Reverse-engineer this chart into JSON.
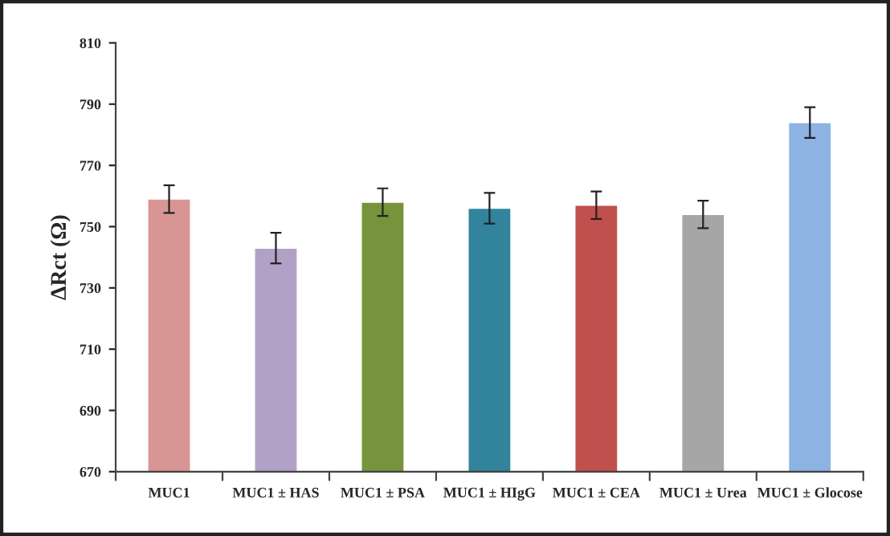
{
  "chart_data": {
    "type": "bar",
    "ylabel": "ΔRct (Ω)",
    "categories": [
      "MUC1",
      "MUC1 ± HAS",
      "MUC1 ± PSA",
      "MUC1 ± HIgG",
      "MUC1 ± CEA",
      "MUC1 ± Urea",
      "MUC1 ± Glocose"
    ],
    "values": [
      759,
      743,
      758,
      756,
      757,
      754,
      784
    ],
    "errors": [
      4.5,
      5,
      4.5,
      5,
      4.5,
      4.5,
      5
    ],
    "colors": [
      "#d99594",
      "#b2a1c7",
      "#77933c",
      "#31849b",
      "#c0504d",
      "#a6a6a6",
      "#8db3e2"
    ],
    "ylim": [
      670,
      810
    ],
    "yticks": [
      670,
      690,
      710,
      730,
      750,
      770,
      790,
      810
    ],
    "grid": false,
    "legend": false
  }
}
